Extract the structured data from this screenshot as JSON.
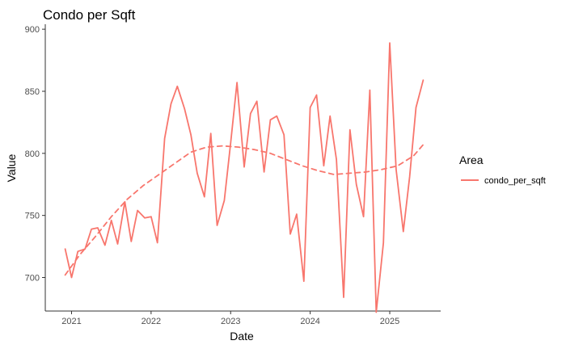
{
  "chart_data": {
    "type": "line",
    "title": "Condo per Sqft",
    "xlabel": "Date",
    "ylabel": "Value",
    "x_ticks": [
      "2021",
      "2022",
      "2023",
      "2024",
      "2025"
    ],
    "y_ticks": [
      700,
      750,
      800,
      850,
      900
    ],
    "xlim": [
      2020.67,
      2025.64
    ],
    "ylim": [
      673,
      904
    ],
    "legend": {
      "title": "Area",
      "entries": [
        "condo_per_sqft"
      ],
      "position": "right"
    },
    "color": "#f8766d",
    "series": [
      {
        "name": "condo_per_sqft",
        "style": "solid",
        "x": [
          2020.92,
          2021.0,
          2021.08,
          2021.17,
          2021.25,
          2021.33,
          2021.42,
          2021.5,
          2021.58,
          2021.67,
          2021.75,
          2021.83,
          2021.92,
          2022.0,
          2022.08,
          2022.17,
          2022.25,
          2022.33,
          2022.42,
          2022.5,
          2022.58,
          2022.67,
          2022.75,
          2022.83,
          2022.92,
          2023.0,
          2023.08,
          2023.17,
          2023.25,
          2023.33,
          2023.42,
          2023.5,
          2023.58,
          2023.67,
          2023.75,
          2023.83,
          2023.92,
          2024.0,
          2024.08,
          2024.17,
          2024.25,
          2024.33,
          2024.42,
          2024.5,
          2024.58,
          2024.67,
          2024.75,
          2024.83,
          2024.92,
          2025.0,
          2025.08,
          2025.17,
          2025.25,
          2025.33,
          2025.42
        ],
        "y": [
          723,
          700,
          721,
          723,
          739,
          740,
          726,
          746,
          727,
          761,
          729,
          754,
          748,
          749,
          728,
          812,
          840,
          854,
          836,
          815,
          784,
          765,
          816,
          742,
          762,
          808,
          857,
          789,
          832,
          842,
          785,
          827,
          830,
          815,
          735,
          751,
          697,
          837,
          847,
          790,
          830,
          795,
          684,
          819,
          775,
          749,
          851,
          672,
          728,
          889,
          787,
          737,
          781,
          837,
          859
        ]
      },
      {
        "name": "trend",
        "style": "dashed",
        "x": [
          2020.92,
          2021.1,
          2021.3,
          2021.5,
          2021.7,
          2021.9,
          2022.1,
          2022.3,
          2022.5,
          2022.7,
          2022.9,
          2023.1,
          2023.3,
          2023.5,
          2023.7,
          2023.9,
          2024.1,
          2024.3,
          2024.5,
          2024.7,
          2024.9,
          2025.1,
          2025.3,
          2025.42
        ],
        "y": [
          702,
          718,
          733,
          749,
          763,
          774,
          783,
          792,
          801,
          805,
          806,
          805,
          803,
          800,
          795,
          790,
          786,
          783,
          784,
          785,
          787,
          790,
          798,
          807
        ]
      }
    ]
  }
}
